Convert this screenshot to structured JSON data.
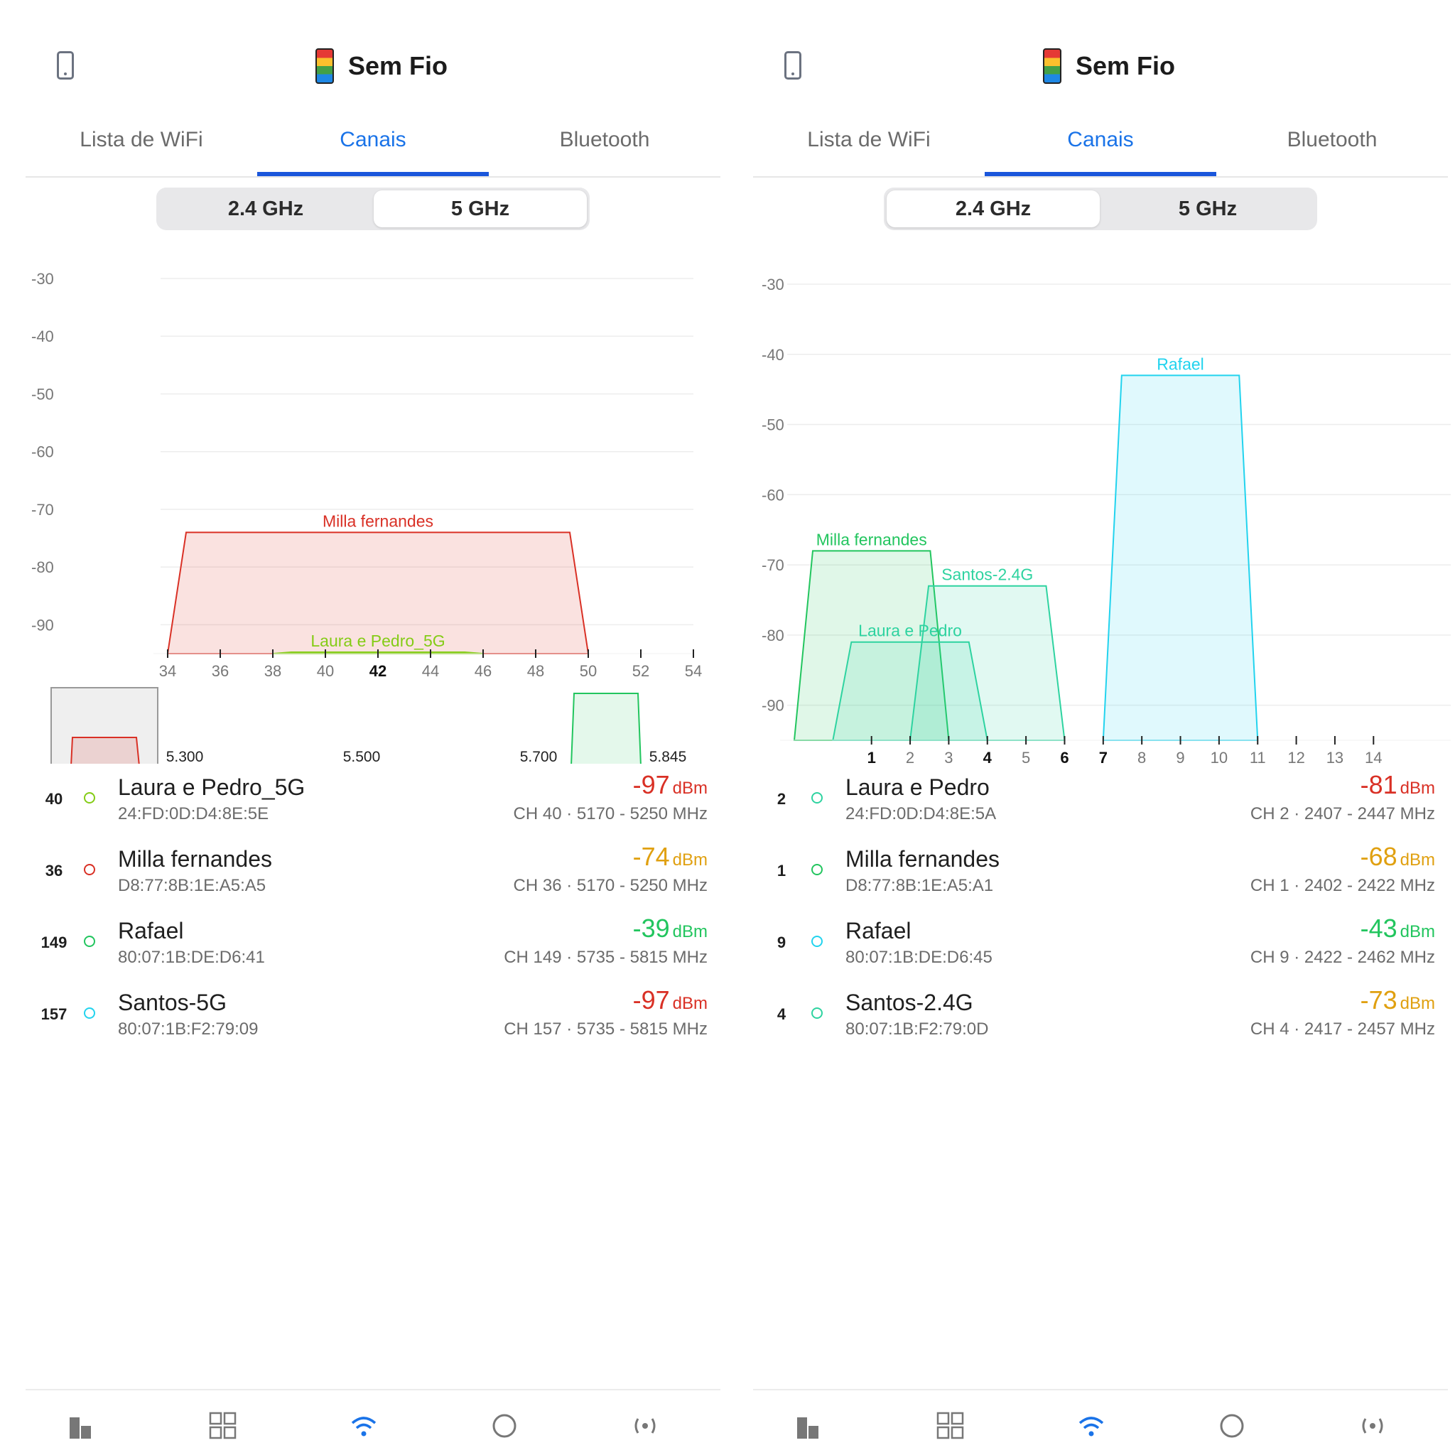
{
  "colors": {
    "accent": "#1a73e8",
    "red": "#d93025",
    "orange": "#e0a010",
    "green": "#22c55e",
    "cyan": "#22d3ee"
  },
  "panels": [
    {
      "app_title": "Sem Fio",
      "tabs": [
        "Lista de WiFi",
        "Canais",
        "Bluetooth"
      ],
      "active_tab": "Canais",
      "bands": [
        "2.4 GHz",
        "5 GHz"
      ],
      "active_band": "5 GHz",
      "chart_data": {
        "type": "area",
        "yticks": [
          "-30",
          "-40",
          "-50",
          "-60",
          "-70",
          "-80",
          "-90"
        ],
        "ylim": [
          -95,
          -30
        ],
        "xticks": [
          "34",
          "36",
          "38",
          "40",
          "42",
          "44",
          "46",
          "48",
          "50",
          "52",
          "54"
        ],
        "bold_xticks": [
          "42"
        ],
        "xlim": [
          34,
          54
        ],
        "series": [
          {
            "name": "Milla fernandes",
            "x_start": 34,
            "x_end": 50,
            "top_dbm": -74,
            "color": "#d93025"
          },
          {
            "name": "Laura e Pedro_5G",
            "x_start": 38,
            "x_end": 46,
            "top_dbm": -97,
            "color": "#84cc16"
          }
        ],
        "overview_labels": [
          "5.300",
          "5.500",
          "5.700",
          "5.845"
        ]
      },
      "networks": [
        {
          "channel": "40",
          "name": "Laura e Pedro_5G",
          "mac": "24:FD:0D:D4:8E:5E",
          "dbm": "-97",
          "unit": "dBm",
          "info": "CH 40 · 5170 - 5250 MHz",
          "dot": "#84cc16",
          "sig_color": "#d93025"
        },
        {
          "channel": "36",
          "name": "Milla fernandes",
          "mac": "D8:77:8B:1E:A5:A5",
          "dbm": "-74",
          "unit": "dBm",
          "info": "CH 36 · 5170 - 5250 MHz",
          "dot": "#d93025",
          "sig_color": "#e0a010"
        },
        {
          "channel": "149",
          "name": "Rafael",
          "mac": "80:07:1B:DE:D6:41",
          "dbm": "-39",
          "unit": "dBm",
          "info": "CH 149 · 5735 - 5815 MHz",
          "dot": "#22c55e",
          "sig_color": "#22c55e"
        },
        {
          "channel": "157",
          "name": "Santos-5G",
          "mac": "80:07:1B:F2:79:09",
          "dbm": "-97",
          "unit": "dBm",
          "info": "CH 157 · 5735 - 5815 MHz",
          "dot": "#22d3ee",
          "sig_color": "#d93025"
        }
      ]
    },
    {
      "app_title": "Sem Fio",
      "tabs": [
        "Lista de WiFi",
        "Canais",
        "Bluetooth"
      ],
      "active_tab": "Canais",
      "bands": [
        "2.4 GHz",
        "5 GHz"
      ],
      "active_band": "2.4 GHz",
      "chart_data": {
        "type": "area",
        "yticks": [
          "-30",
          "-40",
          "-50",
          "-60",
          "-70",
          "-80",
          "-90"
        ],
        "ylim": [
          -95,
          -30
        ],
        "xticks": [
          "1",
          "2",
          "3",
          "4",
          "5",
          "6",
          "7",
          "8",
          "9",
          "10",
          "11",
          "12",
          "13",
          "14"
        ],
        "bold_xticks": [
          "1",
          "4",
          "6",
          "7"
        ],
        "xlim": [
          -1,
          16
        ],
        "series": [
          {
            "name": "Milla fernandes",
            "x_start": -1,
            "x_end": 3,
            "top_dbm": -68,
            "color": "#22c55e"
          },
          {
            "name": "Laura e Pedro",
            "x_start": 0,
            "x_end": 4,
            "top_dbm": -81,
            "color": "#2ed3a0"
          },
          {
            "name": "Santos-2.4G",
            "x_start": 2,
            "x_end": 6,
            "top_dbm": -73,
            "color": "#2ed3a0"
          },
          {
            "name": "Rafael",
            "x_start": 7,
            "x_end": 11,
            "top_dbm": -43,
            "color": "#22d3ee"
          }
        ]
      },
      "networks": [
        {
          "channel": "2",
          "name": "Laura e Pedro",
          "mac": "24:FD:0D:D4:8E:5A",
          "dbm": "-81",
          "unit": "dBm",
          "info": "CH 2 · 2407 - 2447 MHz",
          "dot": "#2ed3a0",
          "sig_color": "#d93025"
        },
        {
          "channel": "1",
          "name": "Milla fernandes",
          "mac": "D8:77:8B:1E:A5:A1",
          "dbm": "-68",
          "unit": "dBm",
          "info": "CH 1 · 2402 - 2422 MHz",
          "dot": "#22c55e",
          "sig_color": "#e0a010"
        },
        {
          "channel": "9",
          "name": "Rafael",
          "mac": "80:07:1B:DE:D6:45",
          "dbm": "-43",
          "unit": "dBm",
          "info": "CH 9 · 2422 - 2462 MHz",
          "dot": "#22d3ee",
          "sig_color": "#22c55e"
        },
        {
          "channel": "4",
          "name": "Santos-2.4G",
          "mac": "80:07:1B:F2:79:0D",
          "dbm": "-73",
          "unit": "dBm",
          "info": "CH 4 · 2417 - 2457 MHz",
          "dot": "#2ed3a0",
          "sig_color": "#e0a010"
        }
      ]
    }
  ],
  "bottom_nav": [
    "chart-bars-icon",
    "grid-icon",
    "wifi-icon",
    "circle-icon",
    "broadcast-icon"
  ]
}
